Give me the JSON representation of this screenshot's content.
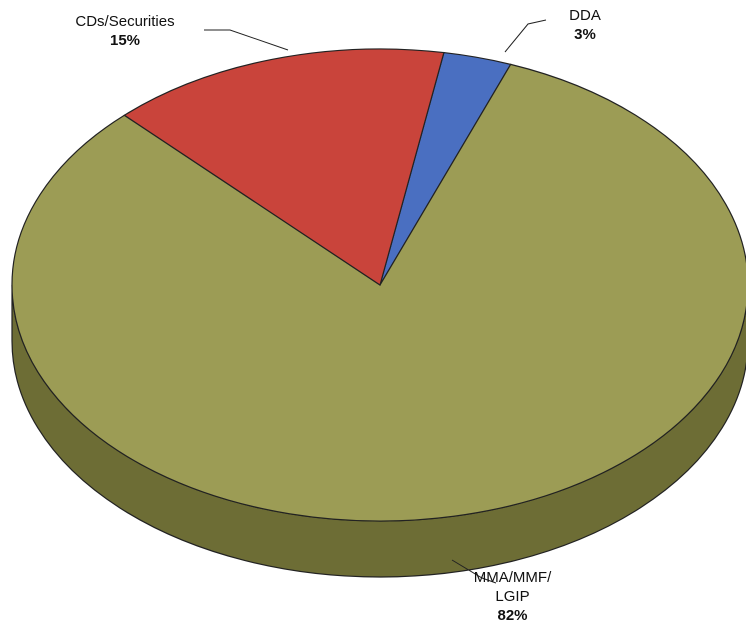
{
  "chart_data": {
    "type": "pie",
    "categories": [
      "DDA",
      "MMA/MMF/LGIP",
      "CDs/Securities"
    ],
    "values": [
      3,
      82,
      15
    ],
    "value_labels": [
      "3%",
      "82%",
      "15%"
    ],
    "colors": [
      "#4a6fc1",
      "#9c9c55",
      "#c9443b"
    ],
    "side_colors": [
      "#2f4a8a",
      "#6d6d35",
      "#8c2a24"
    ]
  }
}
